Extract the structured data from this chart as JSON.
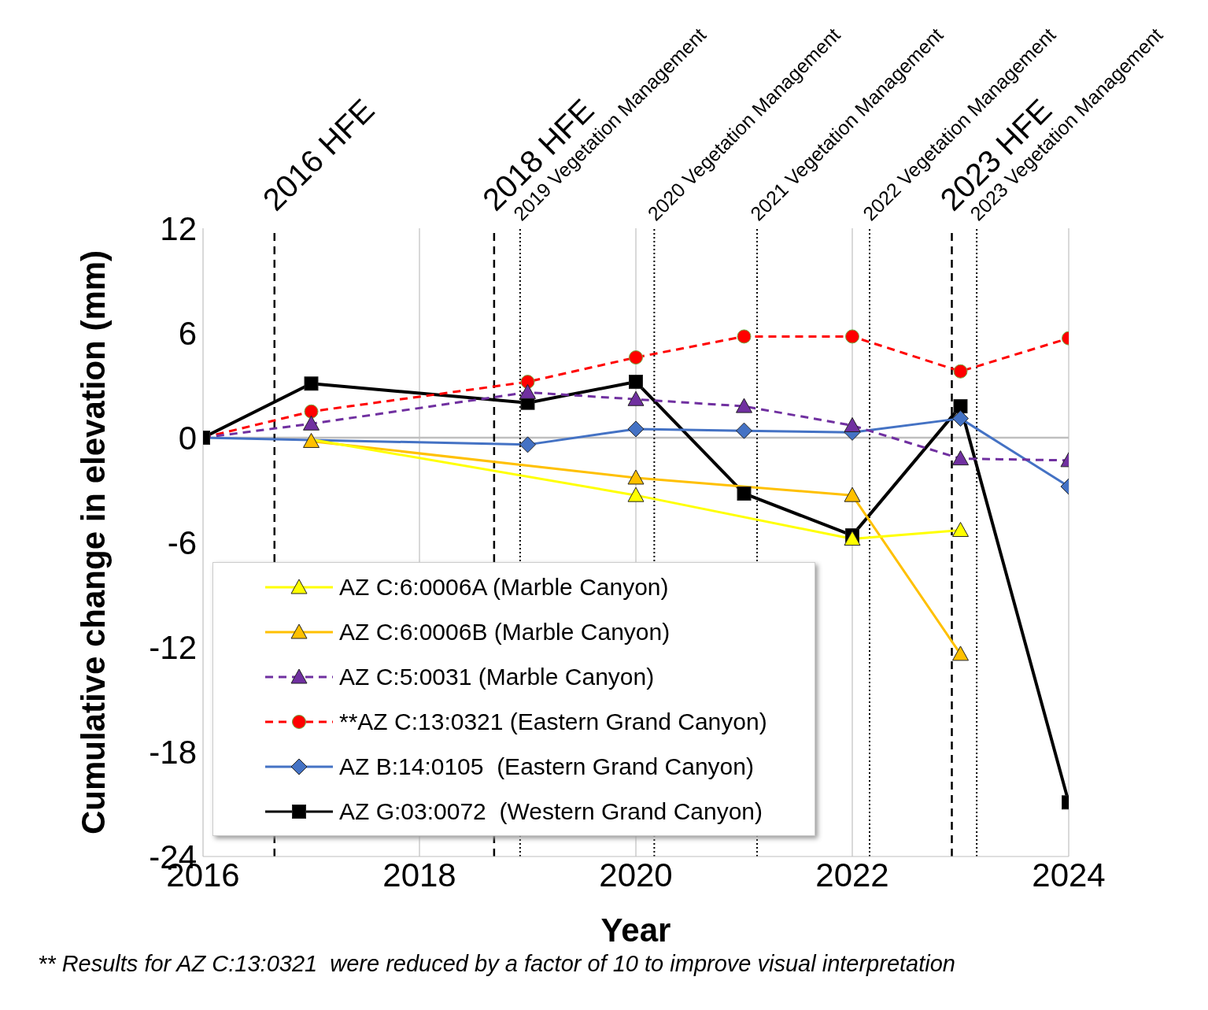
{
  "chart_data": {
    "type": "line",
    "xlabel": "Year",
    "ylabel": "Cumulative change in elevation (mm)",
    "xlim": [
      2016,
      2024
    ],
    "xticks": [
      2016,
      2018,
      2020,
      2022,
      2024
    ],
    "ylim": [
      -24,
      12
    ],
    "yticks": [
      -24,
      -18,
      -12,
      -6,
      0,
      6,
      12
    ],
    "grid": "x",
    "legend": "bottom left",
    "series": [
      {
        "name": "AZ C:6:0006A (Marble Canyon)",
        "color": "#ffff00",
        "marker": "triangle",
        "line_style": "solid",
        "x": [
          2017,
          2020,
          2022,
          2023
        ],
        "values": [
          -0.1,
          -3.3,
          -5.8,
          -5.3
        ]
      },
      {
        "name": "AZ C:6:0006B (Marble Canyon)",
        "color": "#ffc000",
        "marker": "triangle",
        "line_style": "solid",
        "x": [
          2017,
          2020,
          2022,
          2023
        ],
        "values": [
          -0.2,
          -2.3,
          -3.3,
          -12.4
        ]
      },
      {
        "name": "AZ C:5:0031 (Marble Canyon)",
        "color": "#7030a0",
        "marker": "triangle",
        "line_style": "dashed",
        "x": [
          2016,
          2017,
          2019,
          2020,
          2021,
          2022,
          2023,
          2024
        ],
        "values": [
          0,
          0.8,
          2.6,
          2.2,
          1.8,
          0.7,
          -1.2,
          -1.3
        ]
      },
      {
        "name": "**AZ C:13:0321 (Eastern Grand Canyon)",
        "color": "#ff0000",
        "marker": "circle",
        "line_style": "dashed",
        "x": [
          2016,
          2017,
          2019,
          2020,
          2021,
          2022,
          2023,
          2024
        ],
        "values": [
          0,
          1.5,
          3.2,
          4.6,
          5.8,
          5.8,
          3.8,
          5.7
        ]
      },
      {
        "name": "AZ B:14:0105  (Eastern Grand Canyon)",
        "color": "#4472c4",
        "marker": "diamond",
        "line_style": "solid",
        "x": [
          2016,
          2019,
          2020,
          2021,
          2022,
          2023,
          2024
        ],
        "values": [
          0,
          -0.4,
          0.5,
          0.4,
          0.3,
          1.1,
          -2.8
        ]
      },
      {
        "name": "AZ G:03:0072  (Western Grand Canyon)",
        "color": "#000000",
        "marker": "square",
        "line_style": "solid",
        "x": [
          2016,
          2017,
          2019,
          2020,
          2021,
          2022,
          2023,
          2024
        ],
        "values": [
          0,
          3.1,
          2.0,
          3.2,
          -3.2,
          -5.6,
          1.8,
          -20.9
        ]
      }
    ],
    "ref_lines": [
      {
        "axis": "y",
        "value": 0,
        "color": "#bfbfbf",
        "line_style": "solid"
      },
      {
        "axis": "x",
        "value": 2016.66,
        "label": "2016 HFE",
        "line_style": "dashed"
      },
      {
        "axis": "x",
        "value": 2018.69,
        "label": "2018 HFE",
        "line_style": "dashed"
      },
      {
        "axis": "x",
        "value": 2022.92,
        "label": "2023 HFE",
        "line_style": "dashed"
      },
      {
        "axis": "x",
        "value": 2018.93,
        "label": "2019 Vegetation Management",
        "line_style": "dotted"
      },
      {
        "axis": "x",
        "value": 2020.17,
        "label": "2020 Vegetation Management",
        "line_style": "dotted"
      },
      {
        "axis": "x",
        "value": 2021.12,
        "label": "2021 Vegetation Management",
        "line_style": "dotted"
      },
      {
        "axis": "x",
        "value": 2022.16,
        "label": "2022 Vegetation Management",
        "line_style": "dotted"
      },
      {
        "axis": "x",
        "value": 2023.15,
        "label": "2023 Vegetation Management",
        "line_style": "dotted"
      }
    ],
    "annotations": [
      "** Results for AZ C:13:0321  were reduced by a factor of 10 to improve visual interpretation"
    ]
  }
}
